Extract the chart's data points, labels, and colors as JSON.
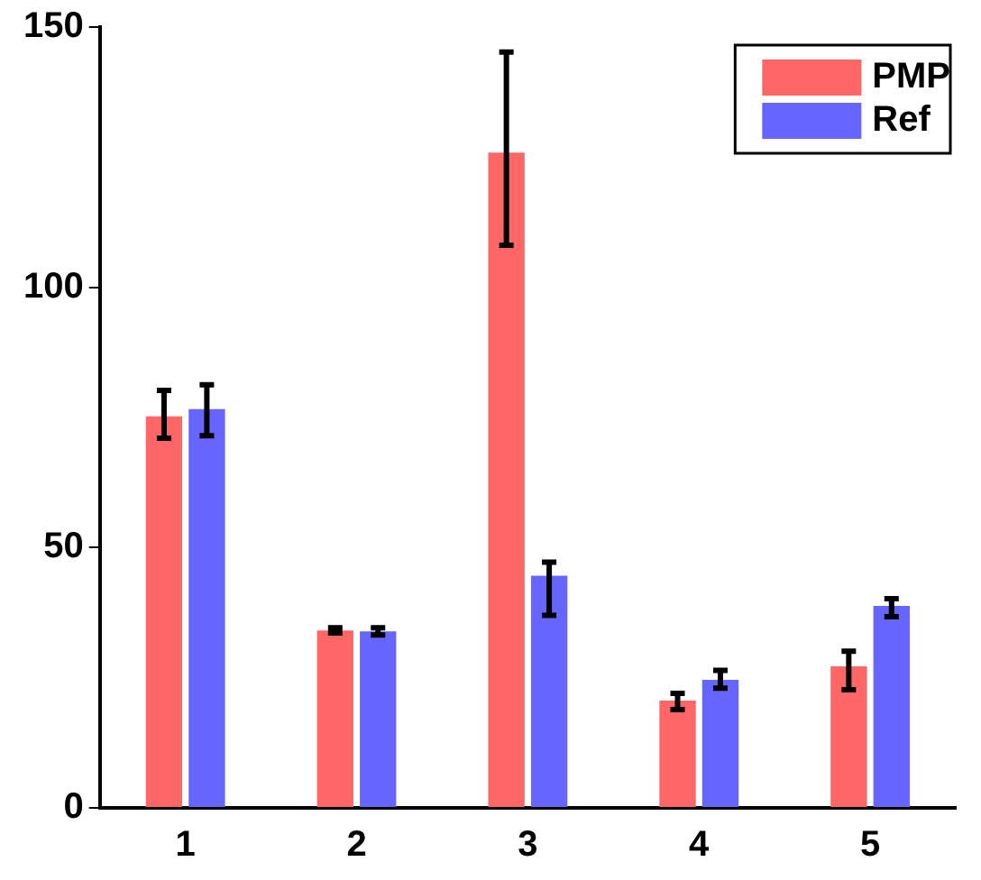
{
  "chart_data": {
    "type": "bar",
    "categories": [
      "1",
      "2",
      "3",
      "4",
      "5"
    ],
    "series": [
      {
        "name": "PMP",
        "color": "#ff6666",
        "values": [
          75.2,
          34.1,
          125.9,
          20.6,
          27.2
        ],
        "errors": [
          [
            71,
            80.2
          ],
          [
            33.6,
            34.6
          ],
          [
            108.1,
            145.2
          ],
          [
            18.9,
            22
          ],
          [
            22.7,
            30.1
          ]
        ]
      },
      {
        "name": "Ref",
        "color": "#6666ff",
        "values": [
          76.6,
          33.9,
          44.6,
          24.6,
          38.8
        ],
        "errors": [
          [
            71.5,
            81.3
          ],
          [
            33.2,
            34.6
          ],
          [
            37,
            47.2
          ],
          [
            23,
            26.4
          ],
          [
            36.7,
            40.2
          ]
        ]
      }
    ],
    "ylim": [
      0,
      150
    ],
    "yticks": [
      0,
      50,
      100,
      150
    ],
    "grid": false,
    "legend": "top right"
  }
}
